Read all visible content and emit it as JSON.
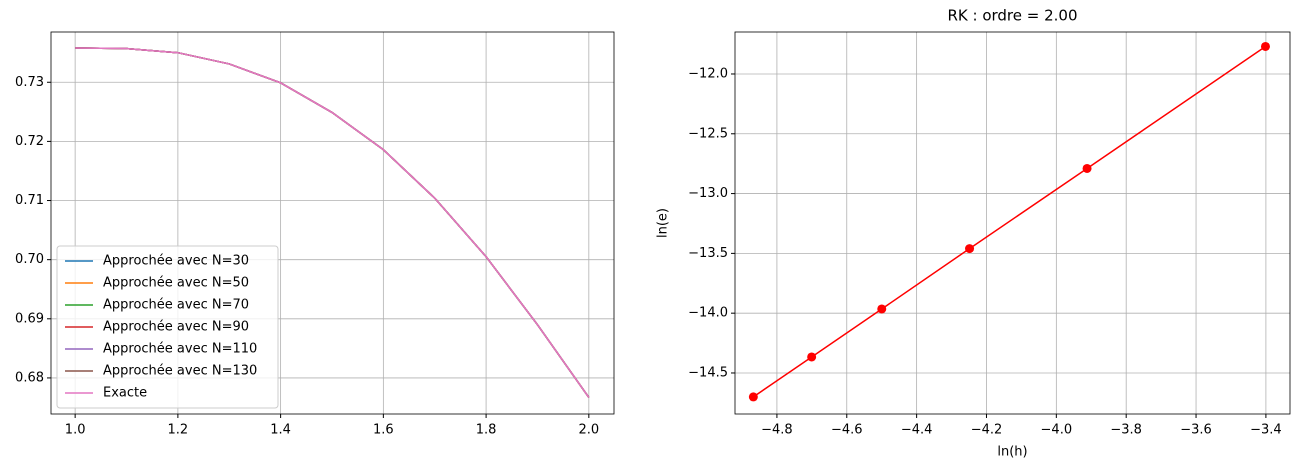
{
  "chart_data": [
    {
      "type": "line",
      "x": [
        1.0,
        1.1,
        1.2,
        1.3,
        1.4,
        1.5,
        1.6,
        1.7,
        1.8,
        1.9,
        2.0
      ],
      "series": [
        {
          "name": "Approchée avec N=30",
          "color": "#1f77b4",
          "values": [
            0.7358,
            0.7357,
            0.735,
            0.7331,
            0.7299,
            0.7249,
            0.7186,
            0.7104,
            0.7005,
            0.689,
            0.6767
          ]
        },
        {
          "name": "Approchée avec N=50",
          "color": "#ff7f0e",
          "values": [
            0.7358,
            0.7357,
            0.735,
            0.7331,
            0.7299,
            0.7249,
            0.7186,
            0.7104,
            0.7005,
            0.689,
            0.6767
          ]
        },
        {
          "name": "Approchée avec N=70",
          "color": "#2ca02c",
          "values": [
            0.7358,
            0.7357,
            0.735,
            0.7331,
            0.7299,
            0.7249,
            0.7186,
            0.7104,
            0.7005,
            0.689,
            0.6767
          ]
        },
        {
          "name": "Approchée avec N=90",
          "color": "#d62728",
          "values": [
            0.7358,
            0.7357,
            0.735,
            0.7331,
            0.7299,
            0.7249,
            0.7186,
            0.7104,
            0.7005,
            0.689,
            0.6767
          ]
        },
        {
          "name": "Approchée avec N=110",
          "color": "#9467bd",
          "values": [
            0.7358,
            0.7357,
            0.735,
            0.7331,
            0.7299,
            0.7249,
            0.7186,
            0.7104,
            0.7005,
            0.689,
            0.6767
          ]
        },
        {
          "name": "Approchée avec N=130",
          "color": "#8c564b",
          "values": [
            0.7358,
            0.7357,
            0.735,
            0.7331,
            0.7299,
            0.7249,
            0.7186,
            0.7104,
            0.7005,
            0.689,
            0.6767
          ]
        },
        {
          "name": "Exacte",
          "color": "#e377c2",
          "values": [
            0.7358,
            0.7357,
            0.735,
            0.7331,
            0.7299,
            0.7249,
            0.7186,
            0.7104,
            0.7005,
            0.689,
            0.6767
          ]
        }
      ],
      "xlim": [
        0.953,
        2.049
      ],
      "ylim": [
        0.6739,
        0.7385
      ],
      "xticks": [
        {
          "value": 1.0,
          "label": "1.0"
        },
        1.2,
        1.4,
        1.6,
        1.8,
        {
          "value": 2.0,
          "label": "2.0"
        }
      ],
      "yticks": [
        0.68,
        0.69,
        {
          "value": 0.7,
          "label": "0.70"
        },
        0.71,
        0.72,
        0.73
      ],
      "grid": true,
      "legend": "lower left"
    },
    {
      "type": "line",
      "title": "RK : ordre = 2.00",
      "xlabel": "ln(h)",
      "ylabel": "ln(e)",
      "x": [
        -4.8675,
        -4.7005,
        -4.4998,
        -4.2485,
        -3.912,
        -3.4012
      ],
      "series": [
        {
          "color": "#ff0000",
          "marker": "o",
          "values": [
            -14.7,
            -14.366,
            -13.965,
            -13.46,
            -12.79,
            -11.77
          ]
        }
      ],
      "xlim": [
        -4.92,
        -3.331
      ],
      "ylim": [
        -14.843,
        -11.649
      ],
      "xticks": [
        {
          "value": -4.8,
          "label": "−4.8"
        },
        {
          "value": -4.6,
          "label": "−4.6"
        },
        {
          "value": -4.4,
          "label": "−4.4"
        },
        {
          "value": -4.2,
          "label": "−4.2"
        },
        {
          "value": -4.0,
          "label": "−4.0"
        },
        {
          "value": -3.8,
          "label": "−3.8"
        },
        {
          "value": -3.6,
          "label": "−3.6"
        },
        {
          "value": -3.4,
          "label": "−3.4"
        }
      ],
      "yticks": [
        {
          "value": -14.5,
          "label": "−14.5"
        },
        {
          "value": -14.0,
          "label": "−14.0"
        },
        {
          "value": -13.5,
          "label": "−13.5"
        },
        {
          "value": -13.0,
          "label": "−13.0"
        },
        {
          "value": -12.5,
          "label": "−12.5"
        },
        {
          "value": -12.0,
          "label": "−12.0"
        }
      ],
      "grid": true
    }
  ]
}
